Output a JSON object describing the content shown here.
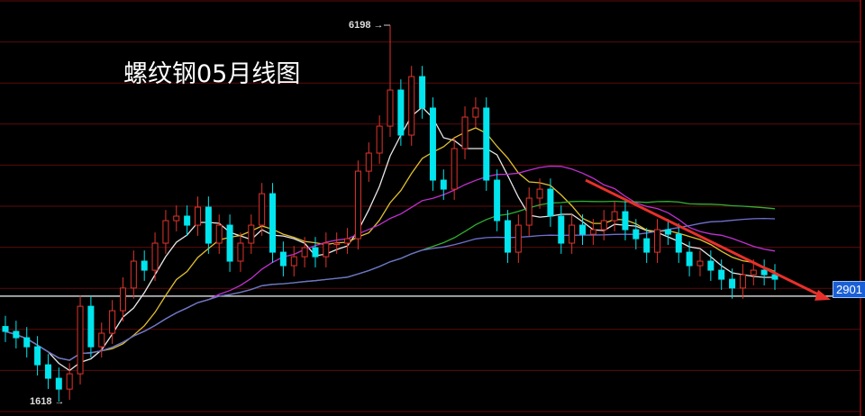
{
  "title": "螺纹钢05月线图",
  "chart_data": {
    "type": "candlestick",
    "title": "螺纹钢05月线图",
    "ylim": [
      1618,
      6198
    ],
    "grid": true,
    "closes": [
      2472,
      2395,
      2285,
      2066,
      1902,
      1770,
      1956,
      2778,
      2285,
      2450,
      2724,
      3000,
      3327,
      3217,
      3546,
      3820,
      3875,
      3765,
      3984,
      3546,
      3765,
      3327,
      3546,
      3765,
      4148,
      3436,
      3272,
      3381,
      3491,
      3381,
      3546,
      3546,
      3600,
      4422,
      4642,
      4970,
      5409,
      4861,
      5573,
      5190,
      4313,
      4203,
      4697,
      5080,
      5190,
      4313,
      3820,
      3436,
      3765,
      4094,
      4203,
      3875,
      3546,
      3765,
      3655,
      3710,
      3820,
      3929,
      3710,
      3600,
      3436,
      3710,
      3655,
      3436,
      3272,
      3327,
      3217,
      3107,
      3000,
      3162,
      3217,
      3162,
      3107
    ],
    "annotations": {
      "high": {
        "label": "6198",
        "value": 6198,
        "index": 36
      },
      "low": {
        "label": "1618",
        "value": 1618,
        "index": 5
      },
      "last_price": {
        "label": "2901",
        "value": 2901
      }
    },
    "trendline": {
      "from": 4313,
      "to": 2901,
      "color": "#e8302a"
    },
    "moving_averages": [
      {
        "period": 5,
        "color": "#e8e8e8"
      },
      {
        "period": 10,
        "color": "#e0c030"
      },
      {
        "period": 20,
        "color": "#c030d0"
      },
      {
        "period": 40,
        "color": "#30b030"
      },
      {
        "period": 60,
        "color": "#7070d0"
      }
    ],
    "colors": {
      "up": "#e0342c",
      "down": "#00e5ee",
      "grid": "#5a0c0c",
      "background": "#000000"
    }
  }
}
